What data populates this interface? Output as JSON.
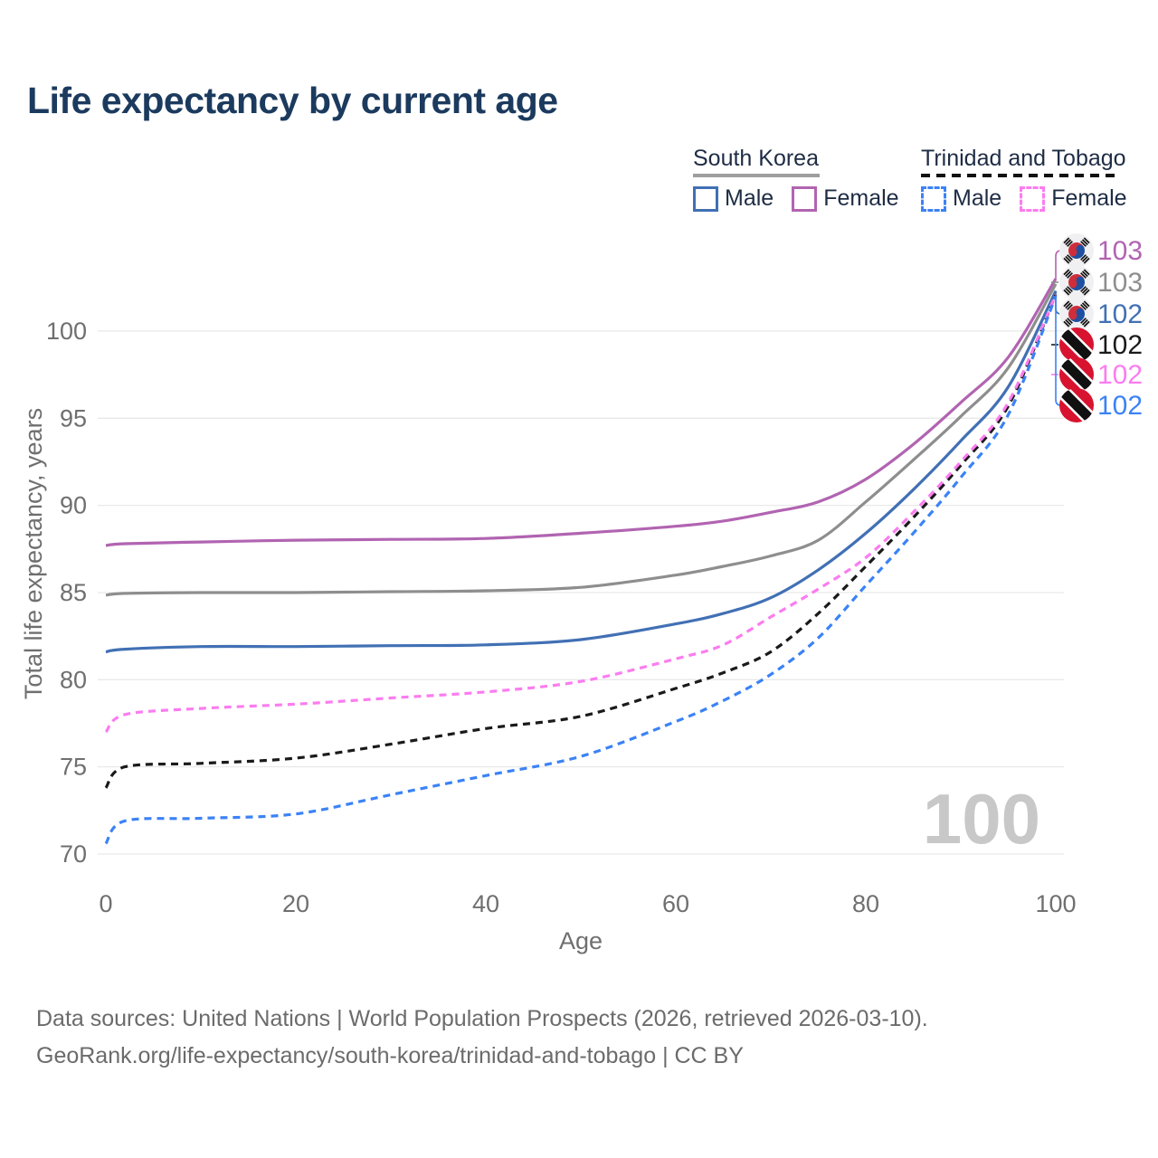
{
  "title": "Life expectancy by current age",
  "legend": {
    "groups": [
      {
        "country": "South Korea",
        "line_style": "solid",
        "underline_color": "#9e9e9e",
        "items": [
          {
            "label": "Male",
            "color": "#4170b4"
          },
          {
            "label": "Female",
            "color": "#b164b1"
          }
        ]
      },
      {
        "country": "Trinidad and Tobago",
        "line_style": "dashed",
        "underline_color": "#111111",
        "items": [
          {
            "label": "Male",
            "color": "#3b82f6"
          },
          {
            "label": "Female",
            "color": "#fb7cf0"
          }
        ]
      }
    ]
  },
  "chart_data": {
    "type": "line",
    "title": "Life expectancy by current age",
    "xlabel": "Age",
    "ylabel": "Total life expectancy, years",
    "x_ticks": [
      0,
      20,
      40,
      60,
      80,
      100
    ],
    "y_ticks": [
      70,
      75,
      80,
      85,
      90,
      95,
      100
    ],
    "xlim": [
      0,
      100
    ],
    "ylim": [
      69.5,
      103.5
    ],
    "grid": "horizontal",
    "legend_position": "top-right",
    "watermark_age": "100",
    "x": [
      0,
      2,
      10,
      20,
      30,
      40,
      50,
      60,
      65,
      70,
      75,
      80,
      85,
      90,
      95,
      100
    ],
    "series": [
      {
        "name": "South Korea Female",
        "country": "South Korea",
        "sex": "Female",
        "color": "#b164b1",
        "dash": "solid",
        "end_label": "103",
        "values": [
          87.7,
          87.8,
          87.9,
          88.0,
          88.05,
          88.1,
          88.4,
          88.8,
          89.1,
          89.6,
          90.2,
          91.5,
          93.5,
          95.9,
          98.5,
          103.0
        ]
      },
      {
        "name": "South Korea Both sexes",
        "country": "South Korea",
        "sex": "Both",
        "color": "#8e8e8e",
        "dash": "solid",
        "end_label": "103",
        "values": [
          84.85,
          84.95,
          85.0,
          85.0,
          85.05,
          85.1,
          85.3,
          86.0,
          86.5,
          87.1,
          88.0,
          90.2,
          92.6,
          95.1,
          97.9,
          102.7
        ]
      },
      {
        "name": "South Korea Male",
        "country": "South Korea",
        "sex": "Male",
        "color": "#4170b4",
        "dash": "solid",
        "end_label": "102",
        "values": [
          81.6,
          81.75,
          81.9,
          81.9,
          81.95,
          82.0,
          82.3,
          83.2,
          83.8,
          84.7,
          86.3,
          88.4,
          90.9,
          93.7,
          96.8,
          102.3
        ]
      },
      {
        "name": "Trinidad and Tobago Both sexes",
        "country": "Trinidad and Tobago",
        "sex": "Both",
        "color": "#1a1a1a",
        "dash": "dashed",
        "end_label": "102",
        "values": [
          73.8,
          75.0,
          75.2,
          75.5,
          76.3,
          77.2,
          77.9,
          79.5,
          80.4,
          81.6,
          83.8,
          86.5,
          89.3,
          92.3,
          95.7,
          102.1
        ]
      },
      {
        "name": "Trinidad and Tobago Female",
        "country": "Trinidad and Tobago",
        "sex": "Female",
        "color": "#fb7cf0",
        "dash": "dashed",
        "end_label": "102",
        "values": [
          77.0,
          78.0,
          78.35,
          78.6,
          78.95,
          79.3,
          79.9,
          81.2,
          82.0,
          83.6,
          85.2,
          87.0,
          89.6,
          92.5,
          95.9,
          102.1
        ]
      },
      {
        "name": "Trinidad and Tobago Male",
        "country": "Trinidad and Tobago",
        "sex": "Male",
        "color": "#3b82f6",
        "dash": "dashed",
        "end_label": "102",
        "values": [
          70.6,
          71.9,
          72.05,
          72.3,
          73.4,
          74.5,
          75.6,
          77.6,
          78.8,
          80.3,
          82.4,
          85.4,
          88.4,
          91.6,
          95.2,
          102.0
        ]
      }
    ]
  },
  "footer": {
    "line1": "Data sources: United Nations | World Population Prospects (2026, retrieved 2026-03-10).",
    "line2": "GeoRank.org/life-expectancy/south-korea/trinidad-and-tobago | CC BY"
  }
}
